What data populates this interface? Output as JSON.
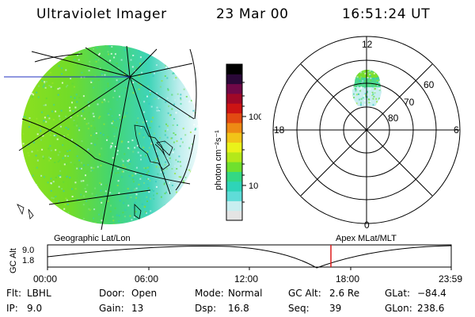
{
  "header": {
    "title": "Ultraviolet Imager",
    "date": "23 Mar 00",
    "time": "16:51:24 UT"
  },
  "colorbar": {
    "label": "photon cm⁻²s⁻¹",
    "ticks": [
      "100",
      "10"
    ]
  },
  "polar": {
    "labels": {
      "top": "12",
      "bottom": "0",
      "left": "18",
      "right": "6"
    },
    "rings": [
      "60",
      "70",
      "80"
    ]
  },
  "timeline": {
    "left_title": "Geographic Lat/Lon",
    "right_title": "Apex MLat/MLT",
    "axis_label": "GC Alt",
    "y_ticks": [
      "9.0",
      "1.8"
    ],
    "x_ticks": [
      "00:00",
      "06:00",
      "12:00",
      "18:00",
      "23:59"
    ],
    "marker_time": "16:51"
  },
  "info": {
    "row1": [
      {
        "label": "Flt:",
        "value": "LBHL"
      },
      {
        "label": "Door:",
        "value": "Open"
      },
      {
        "label": "Mode:",
        "value": "Normal"
      },
      {
        "label": "GC Alt:",
        "value": "2.6 Re"
      },
      {
        "label": "GLat:",
        "value": "−84.4"
      }
    ],
    "row2": [
      {
        "label": "IP:",
        "value": "9.0"
      },
      {
        "label": "Gain:",
        "value": "13"
      },
      {
        "label": "Dsp:",
        "value": "16.8"
      },
      {
        "label": "Seq:",
        "value": "39"
      },
      {
        "label": "GLon:",
        "value": "238.6"
      }
    ]
  },
  "colors": {
    "scale": [
      "#e4e4e4",
      "#c8eef0",
      "#5fdcd8",
      "#2ed4b8",
      "#34d884",
      "#6fe02e",
      "#b4e81a",
      "#eaf21a",
      "#f2c418",
      "#ee8a14",
      "#e24a12",
      "#cc1414",
      "#a00828",
      "#700848",
      "#2a0838",
      "#000000"
    ],
    "marker": "#dd1a1a"
  }
}
